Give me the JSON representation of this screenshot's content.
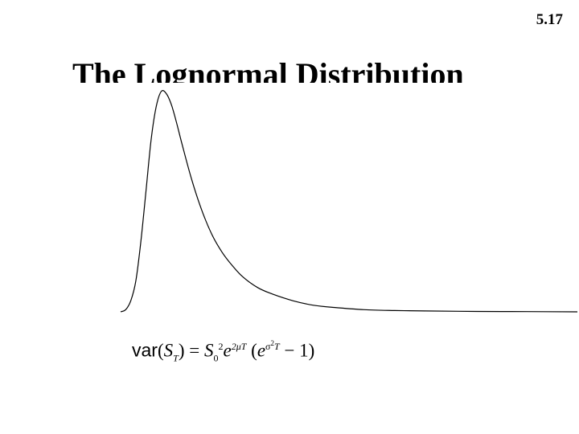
{
  "slide": {
    "number": "5.17",
    "title": "The Lognormal Distribution"
  },
  "formula": {
    "text": "var(S_T) = S_0^2 e^(2μT) (e^(σ^2 T) − 1)",
    "var": "var",
    "S": "S",
    "sub_T": "T",
    "equals": " = ",
    "sub_0": "0",
    "exp2": "2",
    "e": "e",
    "exp_2muT": "2μT",
    "open_paren": " (",
    "sigma": "σ",
    "sigma_exp": "2",
    "T": "T",
    "minus_one": " − 1)"
  },
  "chart_data": {
    "type": "line",
    "title": "",
    "xlabel": "",
    "ylabel": "",
    "axes_visible": false,
    "grid": false,
    "xlim": [
      0,
      4.5
    ],
    "ylim": [
      0,
      1.05
    ],
    "series": [
      {
        "x": [
          0,
          0.05,
          0.1,
          0.15,
          0.2,
          0.25,
          0.3,
          0.35,
          0.4,
          0.45,
          0.5,
          0.55,
          0.6,
          0.7,
          0.8,
          0.9,
          1.0,
          1.1,
          1.2,
          1.35,
          1.5,
          1.7,
          1.9,
          2.1,
          2.4,
          2.7,
          3.0,
          3.5,
          4.0,
          4.5
        ],
        "values": [
          0,
          0.01,
          0.05,
          0.14,
          0.32,
          0.55,
          0.78,
          0.93,
          1.0,
          0.99,
          0.94,
          0.86,
          0.77,
          0.6,
          0.46,
          0.35,
          0.27,
          0.21,
          0.16,
          0.11,
          0.08,
          0.05,
          0.03,
          0.02,
          0.01,
          0.006,
          0.004,
          0.002,
          0.001,
          0
        ]
      }
    ]
  }
}
